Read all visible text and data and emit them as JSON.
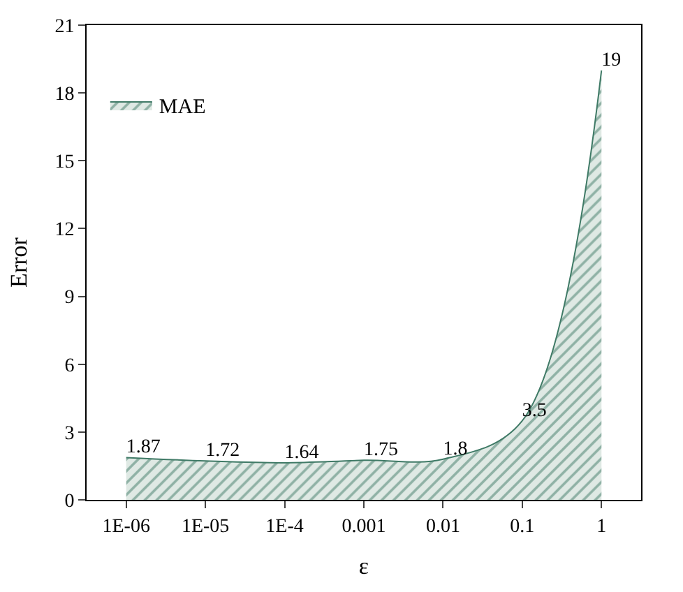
{
  "chart_data": {
    "type": "area",
    "xlabel": "ε",
    "ylabel": "Error",
    "categories": [
      "1E-06",
      "1E-05",
      "1E-4",
      "0.001",
      "0.01",
      "0.1",
      "1"
    ],
    "series": [
      {
        "name": "MAE",
        "color": "#3f7a66",
        "values": [
          1.87,
          1.72,
          1.64,
          1.75,
          1.8,
          3.5,
          19
        ]
      }
    ],
    "ylim": [
      0,
      21
    ],
    "yticks": [
      0,
      3,
      6,
      9,
      12,
      15,
      18,
      21
    ],
    "data_labels": true,
    "legend": "top left"
  }
}
